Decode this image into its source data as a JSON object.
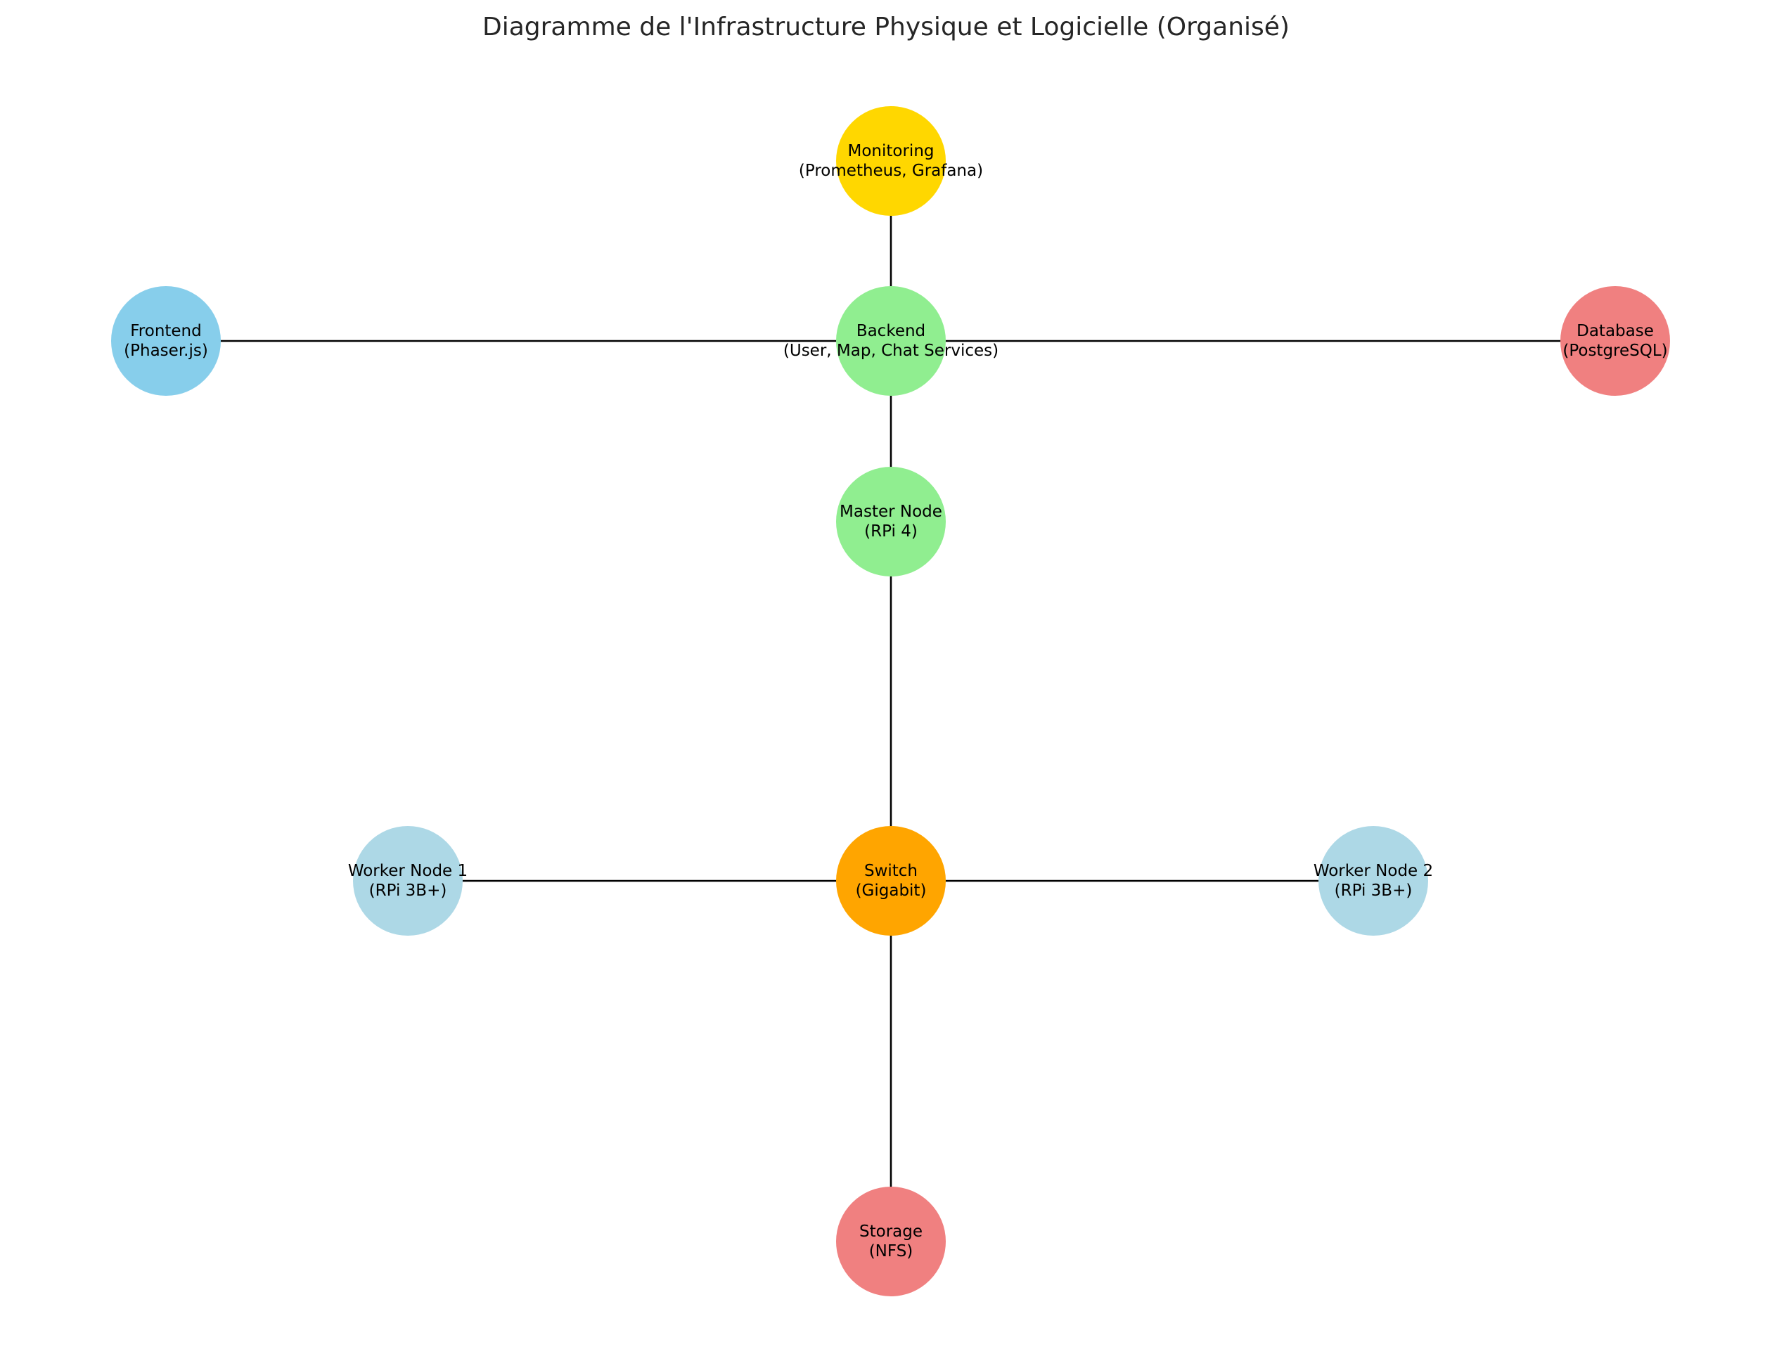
{
  "title": "Diagramme de l'Infrastructure Physique et Logicielle (Organisé)",
  "nodes": [
    {
      "id": "monitoring",
      "line1": "Monitoring",
      "line2": "(Prometheus, Grafana)",
      "color": "#FFD700"
    },
    {
      "id": "backend",
      "line1": "Backend",
      "line2": "(User, Map, Chat Services)",
      "color": "#90EE90"
    },
    {
      "id": "frontend",
      "line1": "Frontend",
      "line2": "(Phaser.js)",
      "color": "#87CEEB"
    },
    {
      "id": "database",
      "line1": "Database",
      "line2": "(PostgreSQL)",
      "color": "#F08080"
    },
    {
      "id": "master",
      "line1": "Master Node",
      "line2": "(RPi 4)",
      "color": "#90EE90"
    },
    {
      "id": "switch",
      "line1": "Switch",
      "line2": "(Gigabit)",
      "color": "#FFA500"
    },
    {
      "id": "worker1",
      "line1": "Worker Node 1",
      "line2": "(RPi 3B+)",
      "color": "#ADD8E6"
    },
    {
      "id": "worker2",
      "line1": "Worker Node 2",
      "line2": "(RPi 3B+)",
      "color": "#ADD8E6"
    },
    {
      "id": "storage",
      "line1": "Storage",
      "line2": "(NFS)",
      "color": "#F08080"
    }
  ],
  "edges": [
    [
      "monitoring",
      "backend"
    ],
    [
      "frontend",
      "backend"
    ],
    [
      "backend",
      "database"
    ],
    [
      "backend",
      "master"
    ],
    [
      "master",
      "switch"
    ],
    [
      "worker1",
      "switch"
    ],
    [
      "switch",
      "worker2"
    ],
    [
      "switch",
      "storage"
    ]
  ]
}
